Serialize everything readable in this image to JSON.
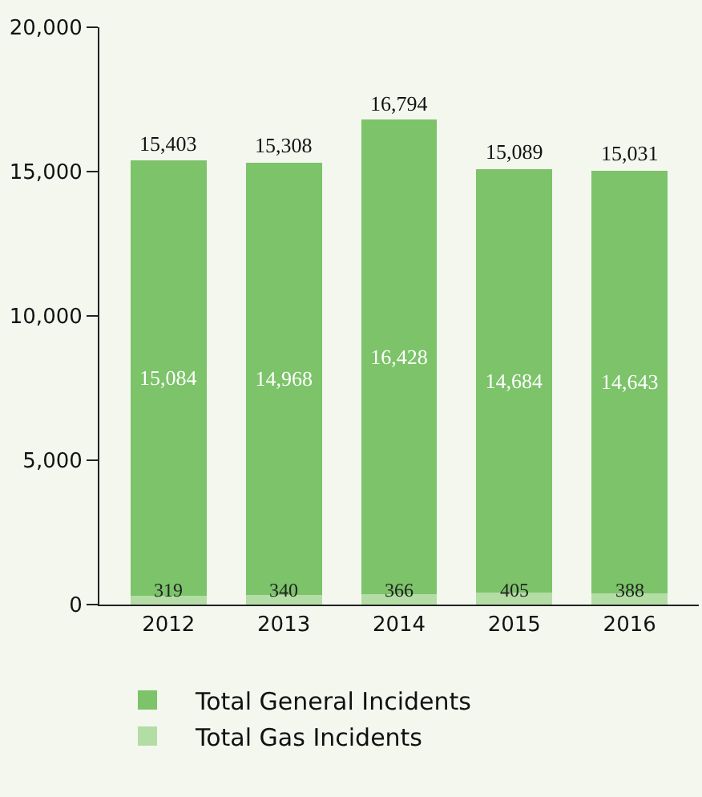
{
  "chart_data": {
    "type": "bar",
    "stacked": true,
    "categories": [
      "2012",
      "2013",
      "2014",
      "2015",
      "2016"
    ],
    "series": [
      {
        "name": "Total Gas Incidents",
        "color": "#b3dda5",
        "values": [
          319,
          340,
          366,
          405,
          388
        ],
        "value_labels": [
          "319",
          "340",
          "366",
          "405",
          "388"
        ]
      },
      {
        "name": "Total General Incidents",
        "color": "#7cc36a",
        "values": [
          15084,
          14968,
          16428,
          14684,
          14643
        ],
        "value_labels": [
          "15,084",
          "14,968",
          "16,428",
          "14,684",
          "14,643"
        ]
      }
    ],
    "totals": [
      "15,403",
      "15,308",
      "16,794",
      "15,089",
      "15,031"
    ],
    "ylim": [
      0,
      20000
    ],
    "yticks": [
      0,
      {
        "value": 5000,
        "label": "5,000"
      },
      {
        "value": 10000,
        "label": "10,000"
      },
      {
        "value": 15000,
        "label": "15,000"
      },
      {
        "value": 20000,
        "label": "20,000"
      }
    ],
    "grid": false,
    "legend": "bottom"
  }
}
